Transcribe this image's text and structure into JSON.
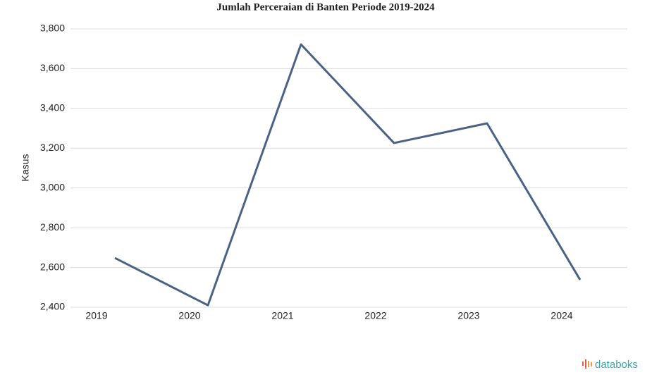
{
  "chart_data": {
    "type": "line",
    "title": "Jumlah Perceraian di Banten Periode 2019-2024",
    "ylabel": "Kasus",
    "categories": [
      "2019",
      "2020",
      "2021",
      "2022",
      "2023",
      "2024"
    ],
    "series": [
      {
        "name": "Kasus",
        "color": "#4a6385",
        "values": [
          2648,
          2410,
          3722,
          3226,
          3325,
          2538
        ]
      }
    ],
    "ylim": [
      2400,
      3800
    ],
    "yticks": [
      {
        "value": 2400,
        "label": "2,400"
      },
      {
        "value": 2600,
        "label": "2,600"
      },
      {
        "value": 2800,
        "label": "2,800"
      },
      {
        "value": 3000,
        "label": "3,000"
      },
      {
        "value": 3200,
        "label": "3,200"
      },
      {
        "value": 3400,
        "label": "3,400"
      },
      {
        "value": 3600,
        "label": "3,600"
      },
      {
        "value": 3800,
        "label": "3,800"
      }
    ],
    "grid": true
  },
  "brand": "databoks"
}
